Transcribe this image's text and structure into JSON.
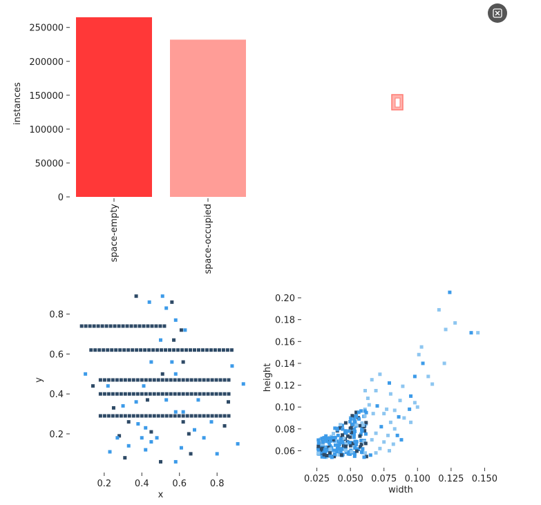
{
  "toolbar": {
    "close_icon": "close-icon"
  },
  "colors": {
    "bar1": "#ff3838",
    "bar2": "#ff9d97",
    "dark": "#2e4a66",
    "blue": "#3d9be9",
    "lightblue": "#8ec6f0"
  },
  "chart_data": [
    {
      "type": "bar",
      "categories": [
        "space-empty",
        "space-occupied"
      ],
      "values": [
        265000,
        232000
      ],
      "title": "",
      "xlabel": "",
      "ylabel": "instances",
      "ylim": [
        0,
        265000
      ],
      "yticks": [
        0,
        50000,
        100000,
        150000,
        200000,
        250000
      ],
      "ytick_labels": [
        "0",
        "50000",
        "100000",
        "150000",
        "200000",
        "250000"
      ]
    },
    {
      "type": "heatmap",
      "title": "",
      "xlabel": "x",
      "ylabel": "y",
      "xlim": [
        0.05,
        0.95
      ],
      "ylim": [
        0.02,
        0.92
      ],
      "xticks": [
        0.2,
        0.4,
        0.6,
        0.8
      ],
      "xtick_labels": [
        "0.2",
        "0.4",
        "0.6",
        "0.8"
      ],
      "yticks": [
        0.2,
        0.4,
        0.6,
        0.8
      ],
      "ytick_labels": [
        "0.2",
        "0.4",
        "0.6",
        "0.8"
      ],
      "dark_rows": [
        0.74,
        0.62,
        0.47,
        0.4,
        0.29
      ],
      "points": [
        [
          0.37,
          0.89
        ],
        [
          0.51,
          0.89
        ],
        [
          0.44,
          0.86
        ],
        [
          0.56,
          0.86
        ],
        [
          0.53,
          0.83
        ],
        [
          0.58,
          0.77
        ],
        [
          0.61,
          0.72
        ],
        [
          0.63,
          0.72
        ],
        [
          0.5,
          0.67
        ],
        [
          0.57,
          0.67
        ],
        [
          0.45,
          0.56
        ],
        [
          0.56,
          0.56
        ],
        [
          0.62,
          0.56
        ],
        [
          0.88,
          0.54
        ],
        [
          0.1,
          0.5
        ],
        [
          0.51,
          0.5
        ],
        [
          0.58,
          0.5
        ],
        [
          0.94,
          0.45
        ],
        [
          0.14,
          0.44
        ],
        [
          0.22,
          0.44
        ],
        [
          0.41,
          0.44
        ],
        [
          0.25,
          0.33
        ],
        [
          0.3,
          0.34
        ],
        [
          0.37,
          0.36
        ],
        [
          0.43,
          0.37
        ],
        [
          0.58,
          0.31
        ],
        [
          0.62,
          0.31
        ],
        [
          0.33,
          0.26
        ],
        [
          0.38,
          0.25
        ],
        [
          0.42,
          0.23
        ],
        [
          0.45,
          0.21
        ],
        [
          0.4,
          0.18
        ],
        [
          0.48,
          0.18
        ],
        [
          0.28,
          0.19
        ],
        [
          0.33,
          0.14
        ],
        [
          0.45,
          0.16
        ],
        [
          0.62,
          0.26
        ],
        [
          0.68,
          0.22
        ],
        [
          0.77,
          0.26
        ],
        [
          0.84,
          0.24
        ],
        [
          0.73,
          0.18
        ],
        [
          0.27,
          0.18
        ],
        [
          0.31,
          0.08
        ],
        [
          0.23,
          0.11
        ],
        [
          0.42,
          0.12
        ],
        [
          0.5,
          0.06
        ],
        [
          0.58,
          0.06
        ],
        [
          0.61,
          0.13
        ],
        [
          0.66,
          0.1
        ],
        [
          0.8,
          0.1
        ],
        [
          0.91,
          0.15
        ],
        [
          0.65,
          0.2
        ],
        [
          0.53,
          0.37
        ],
        [
          0.7,
          0.37
        ],
        [
          0.86,
          0.36
        ]
      ]
    },
    {
      "type": "heatmap",
      "title": "",
      "xlabel": "width",
      "ylabel": "height",
      "xlim": [
        0.018,
        0.157
      ],
      "ylim": [
        0.047,
        0.207
      ],
      "xticks": [
        0.025,
        0.05,
        0.075,
        0.1,
        0.125,
        0.15
      ],
      "xtick_labels": [
        "0.025",
        "0.050",
        "0.075",
        "0.100",
        "0.125",
        "0.150"
      ],
      "yticks": [
        0.06,
        0.08,
        0.1,
        0.12,
        0.14,
        0.16,
        0.18,
        0.2
      ],
      "ytick_labels": [
        "0.06",
        "0.08",
        "0.10",
        "0.12",
        "0.14",
        "0.16",
        "0.18",
        "0.20"
      ],
      "points": [
        [
          0.124,
          0.205
        ],
        [
          0.116,
          0.189
        ],
        [
          0.128,
          0.177
        ],
        [
          0.121,
          0.171
        ],
        [
          0.14,
          0.168
        ],
        [
          0.145,
          0.168
        ],
        [
          0.103,
          0.155
        ],
        [
          0.101,
          0.148
        ],
        [
          0.104,
          0.14
        ],
        [
          0.12,
          0.14
        ],
        [
          0.108,
          0.128
        ],
        [
          0.111,
          0.121
        ],
        [
          0.098,
          0.128
        ],
        [
          0.089,
          0.119
        ],
        [
          0.072,
          0.13
        ],
        [
          0.066,
          0.125
        ],
        [
          0.079,
          0.122
        ],
        [
          0.061,
          0.115
        ],
        [
          0.069,
          0.115
        ],
        [
          0.063,
          0.108
        ],
        [
          0.095,
          0.11
        ],
        [
          0.08,
          0.112
        ],
        [
          0.087,
          0.106
        ],
        [
          0.064,
          0.102
        ],
        [
          0.07,
          0.101
        ],
        [
          0.098,
          0.104
        ],
        [
          0.077,
          0.098
        ],
        [
          0.083,
          0.097
        ],
        [
          0.094,
          0.098
        ],
        [
          0.1,
          0.1
        ],
        [
          0.067,
          0.094
        ],
        [
          0.075,
          0.094
        ],
        [
          0.086,
          0.091
        ],
        [
          0.09,
          0.09
        ],
        [
          0.08,
          0.086
        ],
        [
          0.095,
          0.086
        ],
        [
          0.073,
          0.082
        ],
        [
          0.083,
          0.08
        ],
        [
          0.069,
          0.076
        ],
        [
          0.078,
          0.074
        ],
        [
          0.085,
          0.074
        ],
        [
          0.066,
          0.07
        ],
        [
          0.075,
          0.068
        ],
        [
          0.082,
          0.066
        ],
        [
          0.088,
          0.07
        ],
        [
          0.072,
          0.062
        ],
        [
          0.069,
          0.058
        ],
        [
          0.079,
          0.06
        ],
        [
          0.065,
          0.056
        ]
      ],
      "cluster_center": [
        0.04,
        0.075
      ]
    }
  ]
}
